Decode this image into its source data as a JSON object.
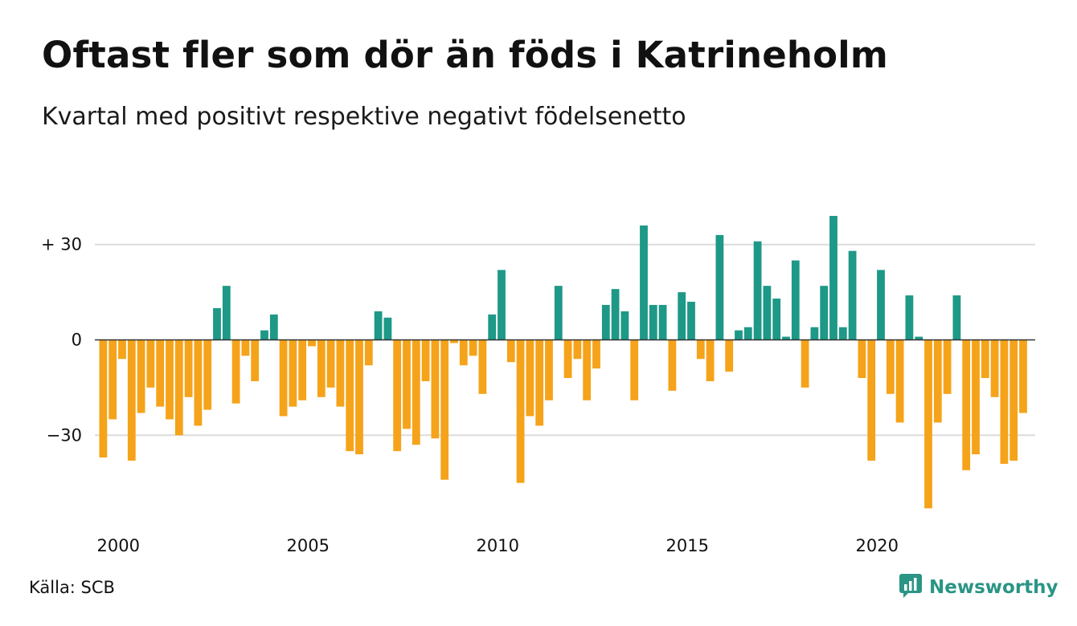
{
  "title": "Oftast fler som dör än föds i Katrineholm",
  "subtitle": "Kvartal med positivt respektive negativt födelsenetto",
  "source": "Källa: SCB",
  "brand": {
    "name": "Newsworthy",
    "logo_icon": "newsworthy-logo-icon",
    "color": "#2a9585"
  },
  "colors": {
    "positive": "#1e9887",
    "negative": "#f5a31a",
    "grid": "#dcdcdc",
    "zero_line": "#333333",
    "text": "#111111"
  },
  "chart_data": {
    "type": "bar",
    "title": "Oftast fler som dör än föds i Katrineholm",
    "subtitle": "Kvartal med positivt respektive negativt födelsenetto",
    "xlabel": "",
    "ylabel": "",
    "grid": true,
    "ylim": [
      -55,
      40
    ],
    "yticks": [
      {
        "value": 30,
        "label": "+ 30"
      },
      {
        "value": 0,
        "label": "0"
      },
      {
        "value": -30,
        "label": "−30"
      }
    ],
    "xticks": [
      {
        "year": 2000,
        "label": "2000"
      },
      {
        "year": 2005,
        "label": "2005"
      },
      {
        "year": 2010,
        "label": "2010"
      },
      {
        "year": 2015,
        "label": "2015"
      },
      {
        "year": 2020,
        "label": "2020"
      }
    ],
    "start_year": 2000,
    "periods_per_year": 4,
    "categories": [
      "2000 K1",
      "2000 K2",
      "2000 K3",
      "2000 K4",
      "2001 K1",
      "2001 K2",
      "2001 K3",
      "2001 K4",
      "2002 K1",
      "2002 K2",
      "2002 K3",
      "2002 K4",
      "2003 K1",
      "2003 K2",
      "2003 K3",
      "2003 K4",
      "2004 K1",
      "2004 K2",
      "2004 K3",
      "2004 K4",
      "2005 K1",
      "2005 K2",
      "2005 K3",
      "2005 K4",
      "2006 K1",
      "2006 K2",
      "2006 K3",
      "2006 K4",
      "2007 K1",
      "2007 K2",
      "2007 K3",
      "2007 K4",
      "2008 K1",
      "2008 K2",
      "2008 K3",
      "2008 K4",
      "2009 K1",
      "2009 K2",
      "2009 K3",
      "2009 K4",
      "2010 K1",
      "2010 K2",
      "2010 K3",
      "2010 K4",
      "2011 K1",
      "2011 K2",
      "2011 K3",
      "2011 K4",
      "2012 K1",
      "2012 K2",
      "2012 K3",
      "2012 K4",
      "2013 K1",
      "2013 K2",
      "2013 K3",
      "2013 K4",
      "2014 K1",
      "2014 K2",
      "2014 K3",
      "2014 K4",
      "2015 K1",
      "2015 K2",
      "2015 K3",
      "2015 K4",
      "2016 K1",
      "2016 K2",
      "2016 K3",
      "2016 K4",
      "2017 K1",
      "2017 K2",
      "2017 K3",
      "2017 K4",
      "2018 K1",
      "2018 K2",
      "2018 K3",
      "2018 K4",
      "2019 K1",
      "2019 K2",
      "2019 K3",
      "2019 K4",
      "2020 K1",
      "2020 K2",
      "2020 K3",
      "2020 K4",
      "2021 K1",
      "2021 K2",
      "2021 K3",
      "2021 K4",
      "2022 K1",
      "2022 K2",
      "2022 K3",
      "2022 K4",
      "2023 K1",
      "2023 K2",
      "2023 K3",
      "2023 K4",
      "2024 K1",
      "2024 K2",
      "2024 K3"
    ],
    "values": [
      -37,
      -25,
      -6,
      -38,
      -23,
      -15,
      -21,
      -25,
      -30,
      -18,
      -27,
      -22,
      10,
      17,
      -20,
      -5,
      -13,
      3,
      8,
      -24,
      -21,
      -19,
      -2,
      -18,
      -15,
      -21,
      -35,
      -36,
      -8,
      9,
      7,
      -35,
      -28,
      -33,
      -13,
      -31,
      -44,
      -1,
      -8,
      -5,
      -17,
      8,
      22,
      -7,
      -45,
      -24,
      -27,
      -19,
      17,
      -12,
      -6,
      -19,
      -9,
      11,
      16,
      9,
      -19,
      36,
      11,
      11,
      -16,
      15,
      12,
      -6,
      -13,
      33,
      -10,
      3,
      4,
      31,
      17,
      13,
      1,
      25,
      -15,
      4,
      17,
      39,
      4,
      28,
      -12,
      -38,
      22,
      -17,
      -26,
      14,
      1,
      -53,
      -26,
      -17,
      14,
      -41,
      -36,
      -12,
      -18,
      -39,
      -38,
      -23,
      0
    ]
  }
}
